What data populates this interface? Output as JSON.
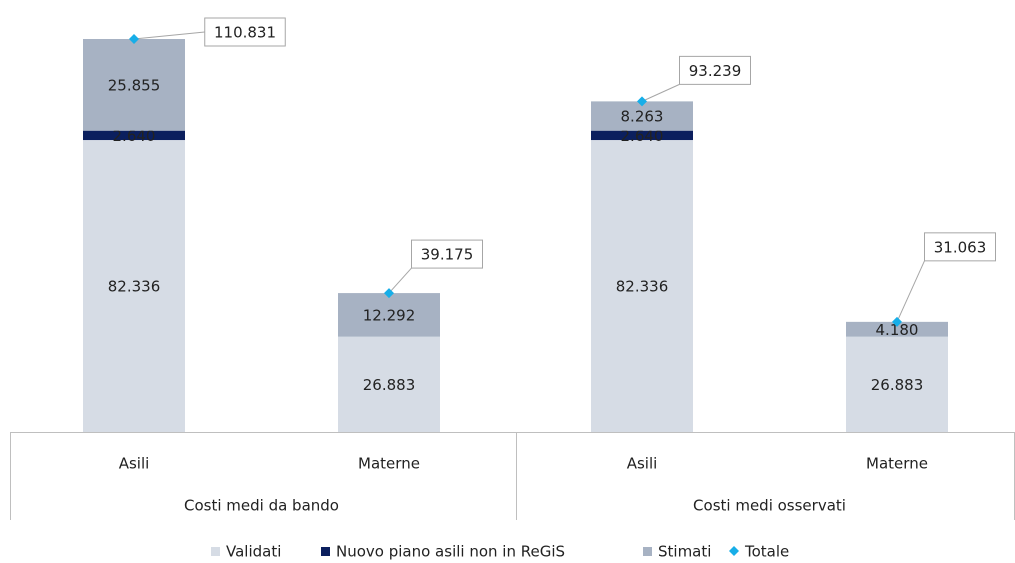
{
  "chart_data": {
    "type": "stacked-bar",
    "categories": [
      "Asili",
      "Materne",
      "Asili",
      "Materne"
    ],
    "groups": [
      "Costi medi da bando",
      "Costi medi osservati"
    ],
    "series": [
      {
        "name": "Validati",
        "color": "#d6dce5",
        "values": [
          82336,
          26883,
          82336,
          26883
        ],
        "value_labels": [
          "82.336",
          "26.883",
          "82.336",
          "26.883"
        ]
      },
      {
        "name": "Nuovo piano asili non in ReGiS",
        "color": "#0b1f5e",
        "values": [
          2640,
          null,
          2640,
          null
        ],
        "value_labels": [
          "2.640",
          null,
          "2.640",
          null
        ]
      },
      {
        "name": "Stimati",
        "color": "#a7b2c3",
        "values": [
          25855,
          12292,
          8263,
          4180
        ],
        "value_labels": [
          "25.855",
          "12.292",
          "8.263",
          "4.180"
        ]
      },
      {
        "name": "Totale",
        "color": "#17aee8",
        "values": [
          110831,
          39175,
          93239,
          31063
        ],
        "value_labels": [
          "110.831",
          "39.175",
          "93.239",
          "31.063"
        ]
      }
    ]
  }
}
